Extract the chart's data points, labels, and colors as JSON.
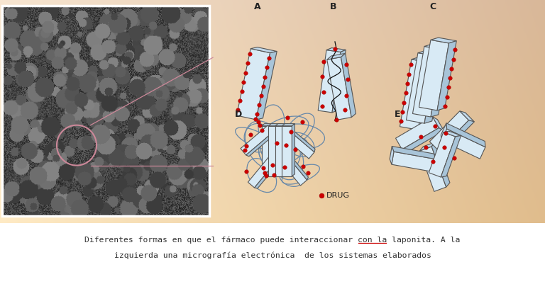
{
  "bg_color_light": "#fdf0d8",
  "bg_color_mid": "#f5d8a8",
  "bg_color_dark": "#e8c080",
  "white_bg": "#FFFFFF",
  "caption_line1": "Diferentes formas en que el fármaco puede interaccionar con la laponita. A la",
  "caption_line2": "izquierda una micrografía electrónica  de los sistemas elaborados",
  "label_A": "A",
  "label_B": "B",
  "label_C": "C",
  "label_D": "D",
  "label_E": "E",
  "drug_label": "DRUG",
  "plate_color": "#d8eaf5",
  "plate_top": "#c0d8ea",
  "plate_right": "#a8c4d8",
  "plate_edge": "#666666",
  "red_dot": "#cc0000",
  "polymer_color": "#6688aa",
  "caption_color": "#333333",
  "underline_color": "#cc0000",
  "mic_border": "#ffffff",
  "zoom_circle_color": "#cc8899",
  "zoom_line_color": "#cc8899"
}
